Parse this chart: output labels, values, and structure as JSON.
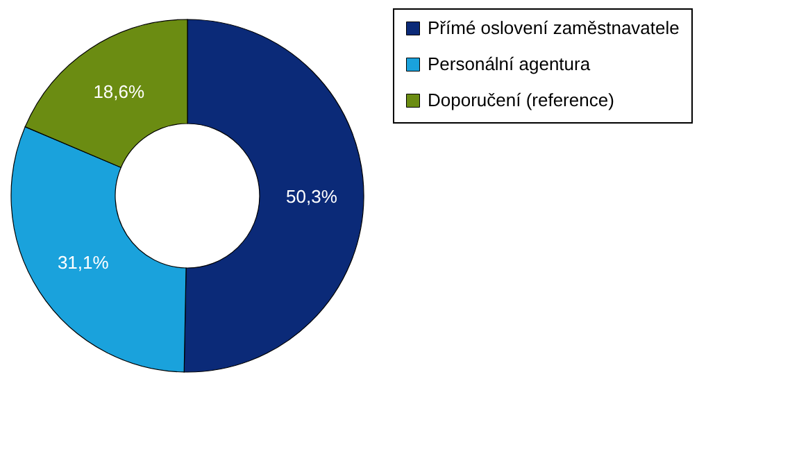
{
  "chart_data": {
    "type": "donut",
    "categories": [
      "Přímé oslovení zaměstnavatele",
      "Personální agentura",
      "Doporučení (reference)"
    ],
    "values": [
      50.3,
      31.1,
      18.6
    ],
    "colors": [
      "#0b2a78",
      "#1aa2dc",
      "#6b8c12"
    ],
    "value_labels": [
      "50,3%",
      "31,1%",
      "18,6%"
    ],
    "legend": "right"
  }
}
